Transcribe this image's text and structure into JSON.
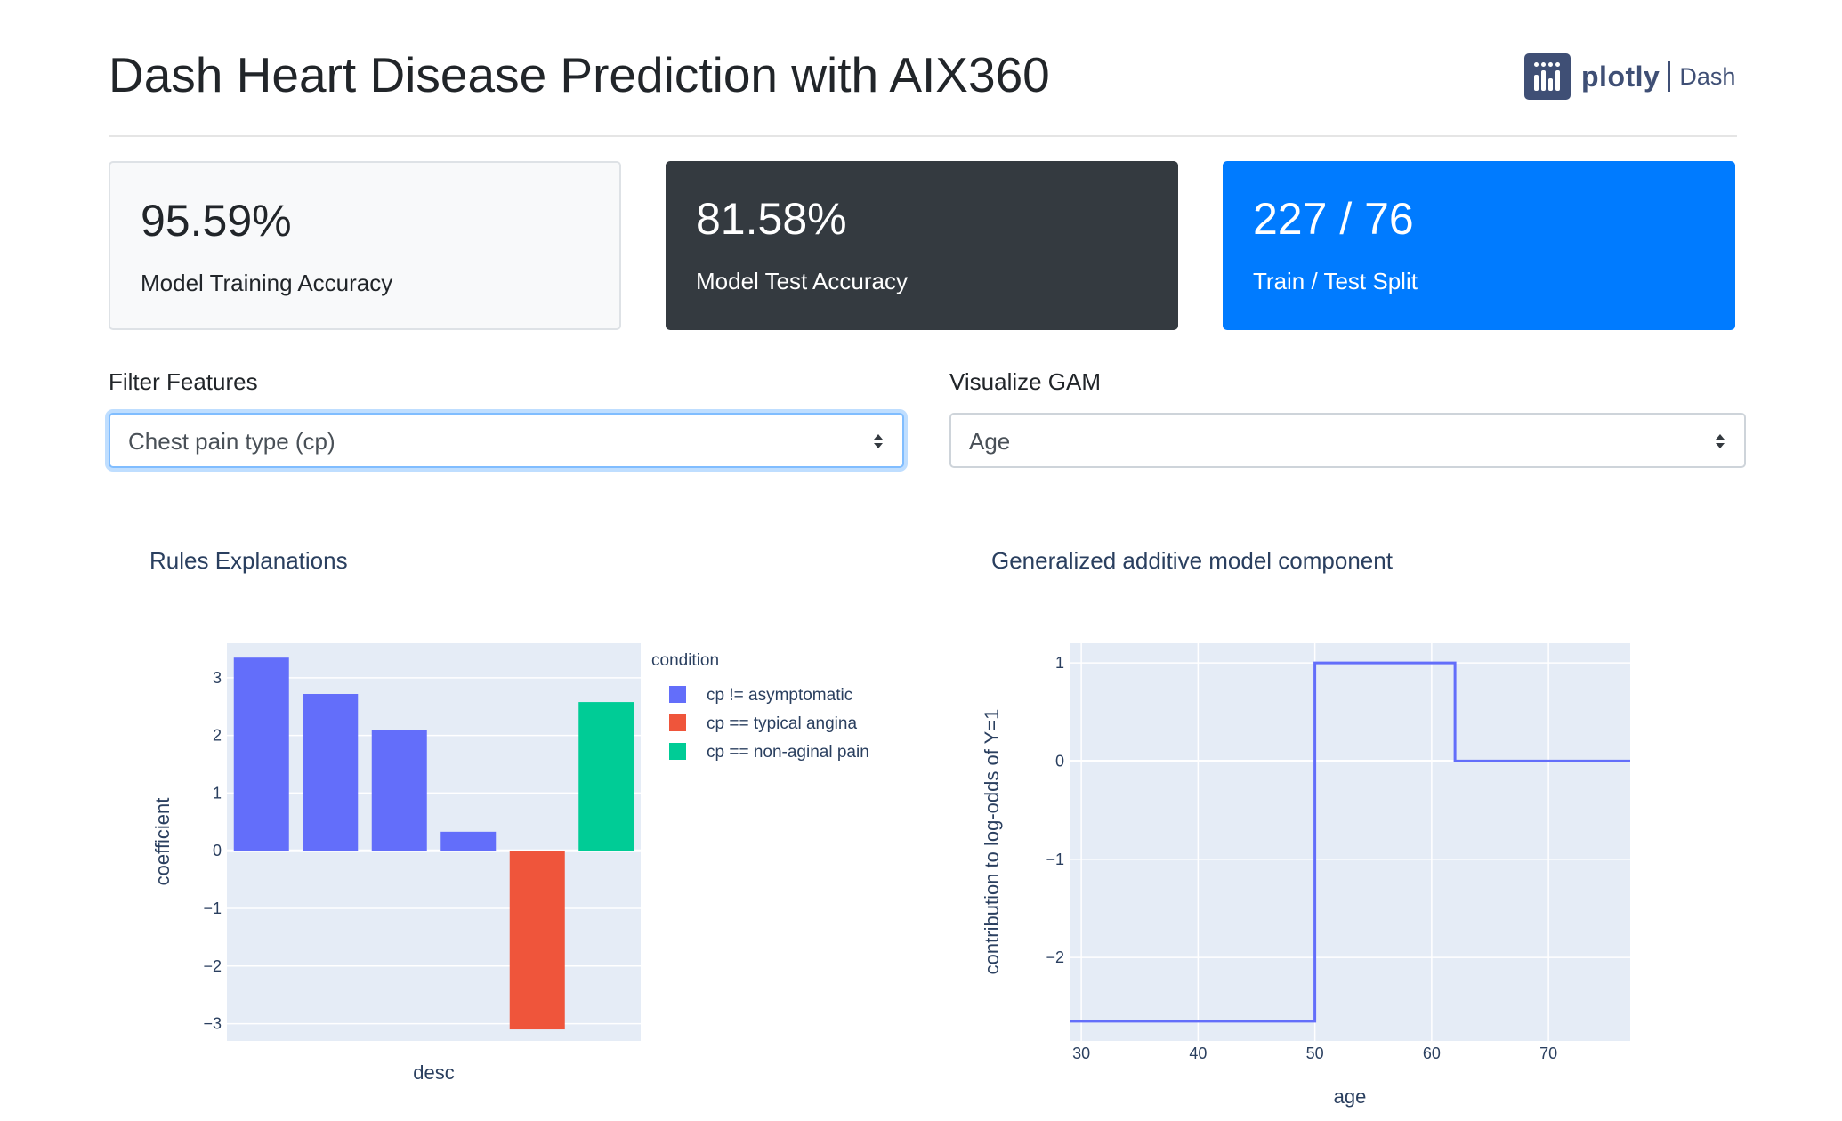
{
  "header": {
    "title": "Dash Heart Disease Prediction with AIX360",
    "logo": {
      "word": "plotly",
      "product": "Dash",
      "color": "#3f4f75"
    }
  },
  "cards": [
    {
      "value": "95.59%",
      "label": "Model Training Accuracy",
      "style": "light"
    },
    {
      "value": "81.58%",
      "label": "Model Test Accuracy",
      "style": "dark"
    },
    {
      "value": "227 / 76",
      "label": "Train / Test Split",
      "style": "primary"
    }
  ],
  "controls": {
    "filter": {
      "label": "Filter Features",
      "selected": "Chest pain type (cp)"
    },
    "gam": {
      "label": "Visualize GAM",
      "selected": "Age"
    }
  },
  "chart_data": [
    {
      "type": "bar",
      "title": "Rules Explanations",
      "xlabel": "desc",
      "ylabel": "coefficient",
      "ylim": [
        -3.3,
        3.6
      ],
      "yticks": [
        3,
        2,
        1,
        0,
        -1,
        -2,
        -3
      ],
      "ytick_labels": [
        "3",
        "2",
        "1",
        "0",
        "−1",
        "−2",
        "−3"
      ],
      "legend": {
        "title": "condition",
        "placement": "right",
        "entries": [
          {
            "name": "cp != asymptomatic",
            "color": "#636efa"
          },
          {
            "name": "cp == typical angina",
            "color": "#ef553b"
          },
          {
            "name": "cp == non-aginal pain",
            "color": "#00cc96"
          }
        ]
      },
      "bars": [
        {
          "value": 3.35,
          "series": 0
        },
        {
          "value": 2.72,
          "series": 0
        },
        {
          "value": 2.1,
          "series": 0
        },
        {
          "value": 0.33,
          "series": 0
        },
        {
          "value": -3.1,
          "series": 1
        },
        {
          "value": 2.58,
          "series": 2
        }
      ],
      "grid": true,
      "plot_bg": "#e5ecf6"
    },
    {
      "type": "line",
      "title": "Generalized additive model component",
      "xlabel": "age",
      "ylabel": "contribution to log-odds of Y=1",
      "xlim": [
        29,
        77
      ],
      "ylim": [
        -2.85,
        1.2
      ],
      "xticks": [
        30,
        40,
        50,
        60,
        70
      ],
      "yticks": [
        1,
        0,
        -1,
        -2
      ],
      "ytick_labels": [
        "1",
        "0",
        "−1",
        "−2"
      ],
      "series": [
        {
          "color": "#636efa",
          "x": [
            29,
            50,
            50,
            62,
            62,
            77
          ],
          "y": [
            -2.65,
            -2.65,
            1,
            1,
            0,
            0
          ]
        }
      ],
      "grid": true,
      "plot_bg": "#e5ecf6"
    }
  ]
}
